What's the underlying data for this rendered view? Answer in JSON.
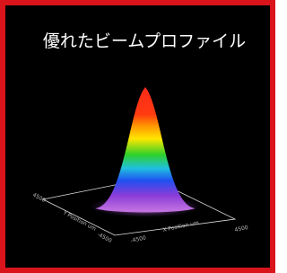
{
  "title": "優れたビームプロファイル",
  "axes": {
    "x_label": "X Position um",
    "y_label": "Y Position um",
    "x_ticks": [
      "-4500",
      "4500"
    ],
    "y_ticks": [
      "4500",
      "-4500"
    ]
  }
}
